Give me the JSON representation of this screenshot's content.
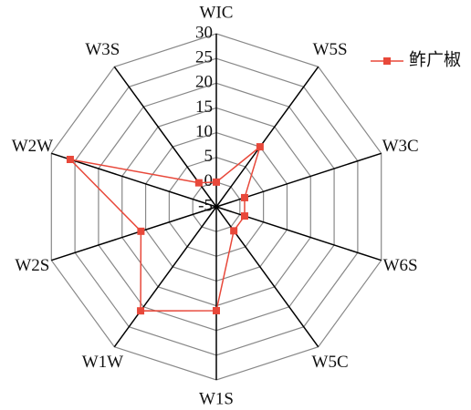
{
  "chart_data": {
    "type": "radar",
    "categories": [
      "WIC",
      "W5S",
      "W3C",
      "W6S",
      "W5C",
      "W1S",
      "W1W",
      "W2S",
      "W2W",
      "W3S"
    ],
    "series": [
      {
        "name": "鲊广椒",
        "color": "#e8483a",
        "values": [
          0,
          10,
          1,
          1,
          1,
          16,
          21,
          11,
          26,
          1
        ]
      }
    ],
    "ylim": [
      -5,
      30
    ],
    "yticks": [
      -5,
      0,
      5,
      10,
      15,
      20,
      25,
      30
    ],
    "grid": true,
    "legend": "top-right"
  }
}
